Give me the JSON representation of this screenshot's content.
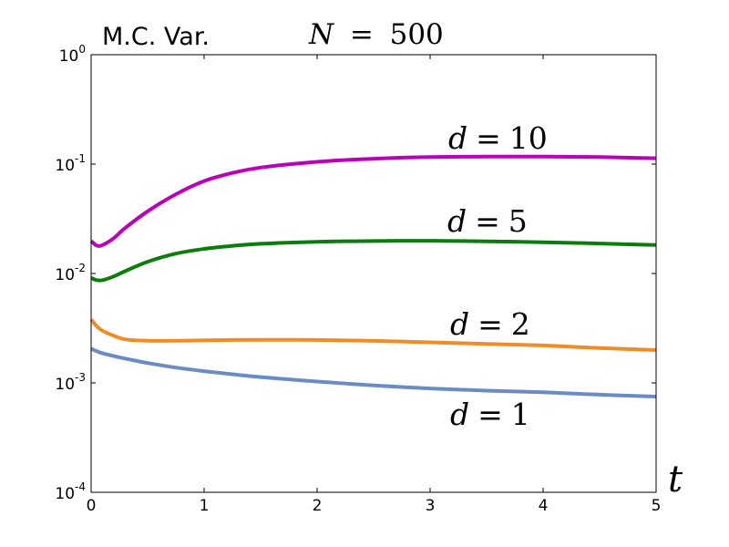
{
  "chart_data": {
    "type": "line",
    "title": "M.C. Var.",
    "subtitle": {
      "var": "N",
      "op": "=",
      "num": "500"
    },
    "xlabel": "t",
    "ylabel": "",
    "xlim": [
      0,
      5
    ],
    "ylim": [
      0.0001,
      1
    ],
    "yscale": "log",
    "grid": false,
    "x_ticks": [
      0,
      1,
      2,
      3,
      4,
      5
    ],
    "x_tick_labels": [
      "0",
      "1",
      "2",
      "3",
      "4",
      "5"
    ],
    "y_ticks": [
      0.0001,
      0.001,
      0.01,
      0.1,
      1
    ],
    "y_tick_labels": [
      {
        "base": "10",
        "exp": "-4"
      },
      {
        "base": "10",
        "exp": "-3"
      },
      {
        "base": "10",
        "exp": "-2"
      },
      {
        "base": "10",
        "exp": "-1"
      },
      {
        "base": "10",
        "exp": "0"
      }
    ],
    "x": [
      0,
      0.05,
      0.1,
      0.2,
      0.3,
      0.5,
      0.75,
      1,
      1.25,
      1.5,
      2,
      2.5,
      3,
      3.5,
      4,
      4.5,
      5
    ],
    "series": [
      {
        "name": "d = 1",
        "label": {
          "var": "d",
          "op": "=",
          "num": "1"
        },
        "color": "#6b8bc3",
        "values": [
          0.00205,
          0.00195,
          0.00187,
          0.00176,
          0.00167,
          0.00152,
          0.00138,
          0.00128,
          0.0012,
          0.00113,
          0.00103,
          0.00095,
          0.00089,
          0.00085,
          0.00082,
          0.00078,
          0.00075
        ]
      },
      {
        "name": "d = 2",
        "label": {
          "var": "d",
          "op": "=",
          "num": "2"
        },
        "color": "#f08c23",
        "values": [
          0.0038,
          0.0033,
          0.003,
          0.0027,
          0.0025,
          0.00243,
          0.00243,
          0.00245,
          0.00247,
          0.00248,
          0.00247,
          0.00242,
          0.00235,
          0.00227,
          0.0022,
          0.00208,
          0.002
        ]
      },
      {
        "name": "d = 5",
        "label": {
          "var": "d",
          "op": "=",
          "num": "5"
        },
        "color": "#0a7d0a",
        "values": [
          0.0091,
          0.0087,
          0.0087,
          0.0094,
          0.0105,
          0.0128,
          0.0152,
          0.0168,
          0.0179,
          0.0187,
          0.0195,
          0.0198,
          0.0199,
          0.0197,
          0.0193,
          0.0188,
          0.0182
        ]
      },
      {
        "name": "d = 10",
        "label": {
          "var": "d",
          "op": "=",
          "num": "10"
        },
        "color": "#bb00bb",
        "values": [
          0.0198,
          0.018,
          0.0182,
          0.021,
          0.026,
          0.037,
          0.053,
          0.07,
          0.083,
          0.093,
          0.105,
          0.112,
          0.116,
          0.117,
          0.117,
          0.116,
          0.113
        ]
      }
    ]
  }
}
